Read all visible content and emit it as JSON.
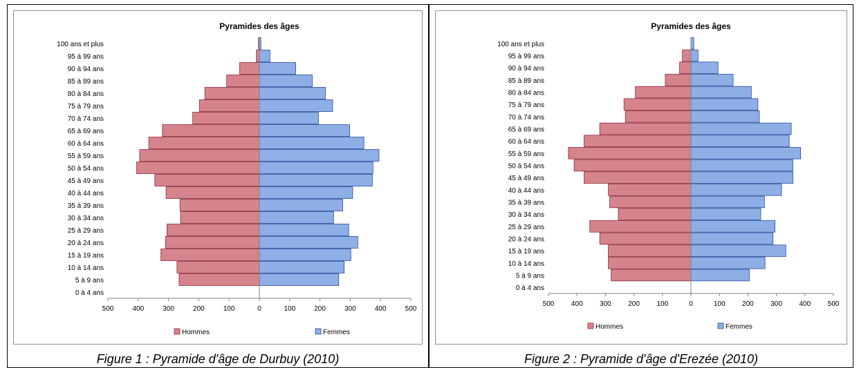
{
  "chart_data": [
    {
      "type": "bar",
      "title": "Pyramides des âges",
      "caption": "Figure 1 : Pyramide d'âge de Durbuy (2010)",
      "categories": [
        "100 ans et plus",
        "95 à 99 ans",
        "90 à 94 ans",
        "85 à 89 ans",
        "80 à 84 ans",
        "75 à 79 ans",
        "70 à 74 ans",
        "65 à 69 ans",
        "60 à 64 ans",
        "55 à 59 ans",
        "50 à 54 ans",
        "45 à 49 ans",
        "40 à 44 ans",
        "35 à 39 ans",
        "30 à 34 ans",
        "25 à 29 ans",
        "20 à 24 ans",
        "15 à 19 ans",
        "10 à 14 ans",
        "5 à 9 ans",
        "0 à 4 ans"
      ],
      "series": [
        {
          "name": "Hommes",
          "values": [
            3,
            10,
            65,
            108,
            180,
            198,
            220,
            320,
            365,
            395,
            405,
            345,
            308,
            262,
            260,
            305,
            310,
            325,
            272,
            265,
            0
          ],
          "color": "#d6848c"
        },
        {
          "name": "Femmes",
          "values": [
            5,
            35,
            120,
            175,
            218,
            242,
            195,
            298,
            345,
            395,
            375,
            373,
            308,
            275,
            245,
            295,
            325,
            302,
            280,
            262,
            0
          ],
          "color": "#8eaee6"
        }
      ],
      "xlim": [
        -500,
        500
      ],
      "xticks": [
        "500",
        "400",
        "300",
        "200",
        "100",
        "0",
        "100",
        "200",
        "300",
        "400",
        "500"
      ],
      "legend": "bottom"
    },
    {
      "type": "bar",
      "title": "Pyramides des âges",
      "caption": "Figure 2 : Pyramide d'âge d'Erezée (2010)",
      "categories": [
        "100 ans et plus",
        "95 à 99 ans",
        "90 à 94 ans",
        "85 à 89 ans",
        "80 à 84 ans",
        "75 à 79 ans",
        "70 à 74 ans",
        "65 à 69 ans",
        "60 à 64 ans",
        "55 à 59 ans",
        "50 à 54 ans",
        "45 à 49 ans",
        "40 à 44 ans",
        "35 à 39 ans",
        "30 à 34 ans",
        "25 à 29 ans",
        "20 à 24 ans",
        "15 à 19 ans",
        "10 à 14 ans",
        "5 à 9 ans",
        "0 à 4 ans"
      ],
      "series": [
        {
          "name": "Hommes",
          "values": [
            0,
            30,
            40,
            90,
            195,
            235,
            230,
            320,
            375,
            430,
            410,
            375,
            290,
            285,
            255,
            355,
            320,
            290,
            290,
            280,
            0
          ],
          "color": "#d6848c"
        },
        {
          "name": "Femmes",
          "values": [
            10,
            25,
            95,
            148,
            212,
            235,
            240,
            352,
            345,
            385,
            358,
            358,
            318,
            258,
            245,
            295,
            288,
            333,
            260,
            205,
            0
          ],
          "color": "#8eaee6"
        }
      ],
      "xlim": [
        -500,
        500
      ],
      "xticks": [
        "500",
        "400",
        "300",
        "200",
        "100",
        "0",
        "100",
        "200",
        "300",
        "400",
        "500"
      ],
      "legend": "bottom"
    }
  ]
}
